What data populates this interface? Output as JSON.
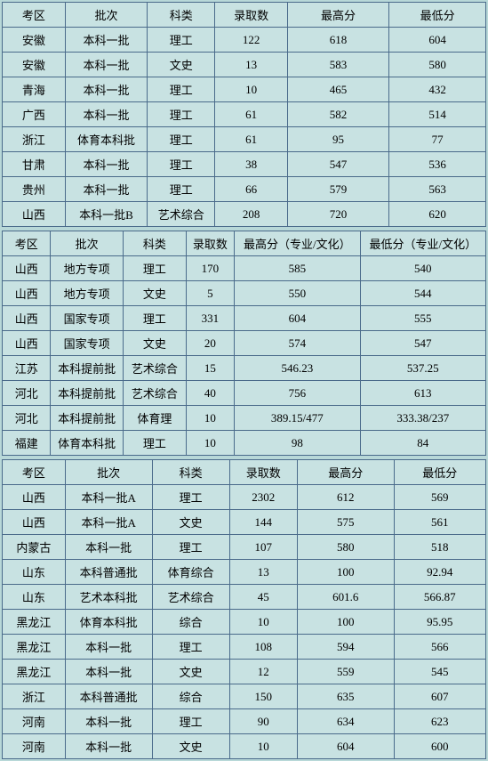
{
  "colors": {
    "background": "#b8d8d8",
    "cell_bg": "#c8e2e2",
    "border": "#4a6a8a",
    "text": "#000000"
  },
  "typography": {
    "font_family": "SimSun",
    "font_size_pt": 10
  },
  "table1": {
    "type": "table",
    "headers": [
      "考区",
      "批次",
      "科类",
      "录取数",
      "最高分",
      "最低分"
    ],
    "col_widths_pct": [
      13,
      17,
      14,
      15,
      21,
      20
    ],
    "rows": [
      [
        "安徽",
        "本科一批",
        "理工",
        "122",
        "618",
        "604"
      ],
      [
        "安徽",
        "本科一批",
        "文史",
        "13",
        "583",
        "580"
      ],
      [
        "青海",
        "本科一批",
        "理工",
        "10",
        "465",
        "432"
      ],
      [
        "广西",
        "本科一批",
        "理工",
        "61",
        "582",
        "514"
      ],
      [
        "浙江",
        "体育本科批",
        "理工",
        "61",
        "95",
        "77"
      ],
      [
        "甘肃",
        "本科一批",
        "理工",
        "38",
        "547",
        "536"
      ],
      [
        "贵州",
        "本科一批",
        "理工",
        "66",
        "579",
        "563"
      ],
      [
        "山西",
        "本科一批B",
        "艺术综合",
        "208",
        "720",
        "620"
      ]
    ]
  },
  "table2": {
    "type": "table",
    "headers": [
      "考区",
      "批次",
      "科类",
      "录取数",
      "最高分（专业/文化）",
      "最低分（专业/文化）"
    ],
    "col_widths_pct": [
      10,
      15,
      13,
      10,
      26,
      26
    ],
    "rows": [
      [
        "山西",
        "地方专项",
        "理工",
        "170",
        "585",
        "540"
      ],
      [
        "山西",
        "地方专项",
        "文史",
        "5",
        "550",
        "544"
      ],
      [
        "山西",
        "国家专项",
        "理工",
        "331",
        "604",
        "555"
      ],
      [
        "山西",
        "国家专项",
        "文史",
        "20",
        "574",
        "547"
      ],
      [
        "江苏",
        "本科提前批",
        "艺术综合",
        "15",
        "546.23",
        "537.25"
      ],
      [
        "河北",
        "本科提前批",
        "艺术综合",
        "40",
        "756",
        "613"
      ],
      [
        "河北",
        "本科提前批",
        "体育理",
        "10",
        "389.15/477",
        "333.38/237"
      ],
      [
        "福建",
        "体育本科批",
        "理工",
        "10",
        "98",
        "84"
      ]
    ]
  },
  "table3": {
    "type": "table",
    "headers": [
      "考区",
      "批次",
      "科类",
      "录取数",
      "最高分",
      "最低分"
    ],
    "col_widths_pct": [
      13,
      18,
      16,
      14,
      20,
      19
    ],
    "rows": [
      [
        "山西",
        "本科一批A",
        "理工",
        "2302",
        "612",
        "569"
      ],
      [
        "山西",
        "本科一批A",
        "文史",
        "144",
        "575",
        "561"
      ],
      [
        "内蒙古",
        "本科一批",
        "理工",
        "107",
        "580",
        "518"
      ],
      [
        "山东",
        "本科普通批",
        "体育综合",
        "13",
        "100",
        "92.94"
      ],
      [
        "山东",
        "艺术本科批",
        "艺术综合",
        "45",
        "601.6",
        "566.87"
      ],
      [
        "黑龙江",
        "体育本科批",
        "综合",
        "10",
        "100",
        "95.95"
      ],
      [
        "黑龙江",
        "本科一批",
        "理工",
        "108",
        "594",
        "566"
      ],
      [
        "黑龙江",
        "本科一批",
        "文史",
        "12",
        "559",
        "545"
      ],
      [
        "浙江",
        "本科普通批",
        "综合",
        "150",
        "635",
        "607"
      ],
      [
        "河南",
        "本科一批",
        "理工",
        "90",
        "634",
        "623"
      ],
      [
        "河南",
        "本科一批",
        "文史",
        "10",
        "604",
        "600"
      ]
    ]
  }
}
